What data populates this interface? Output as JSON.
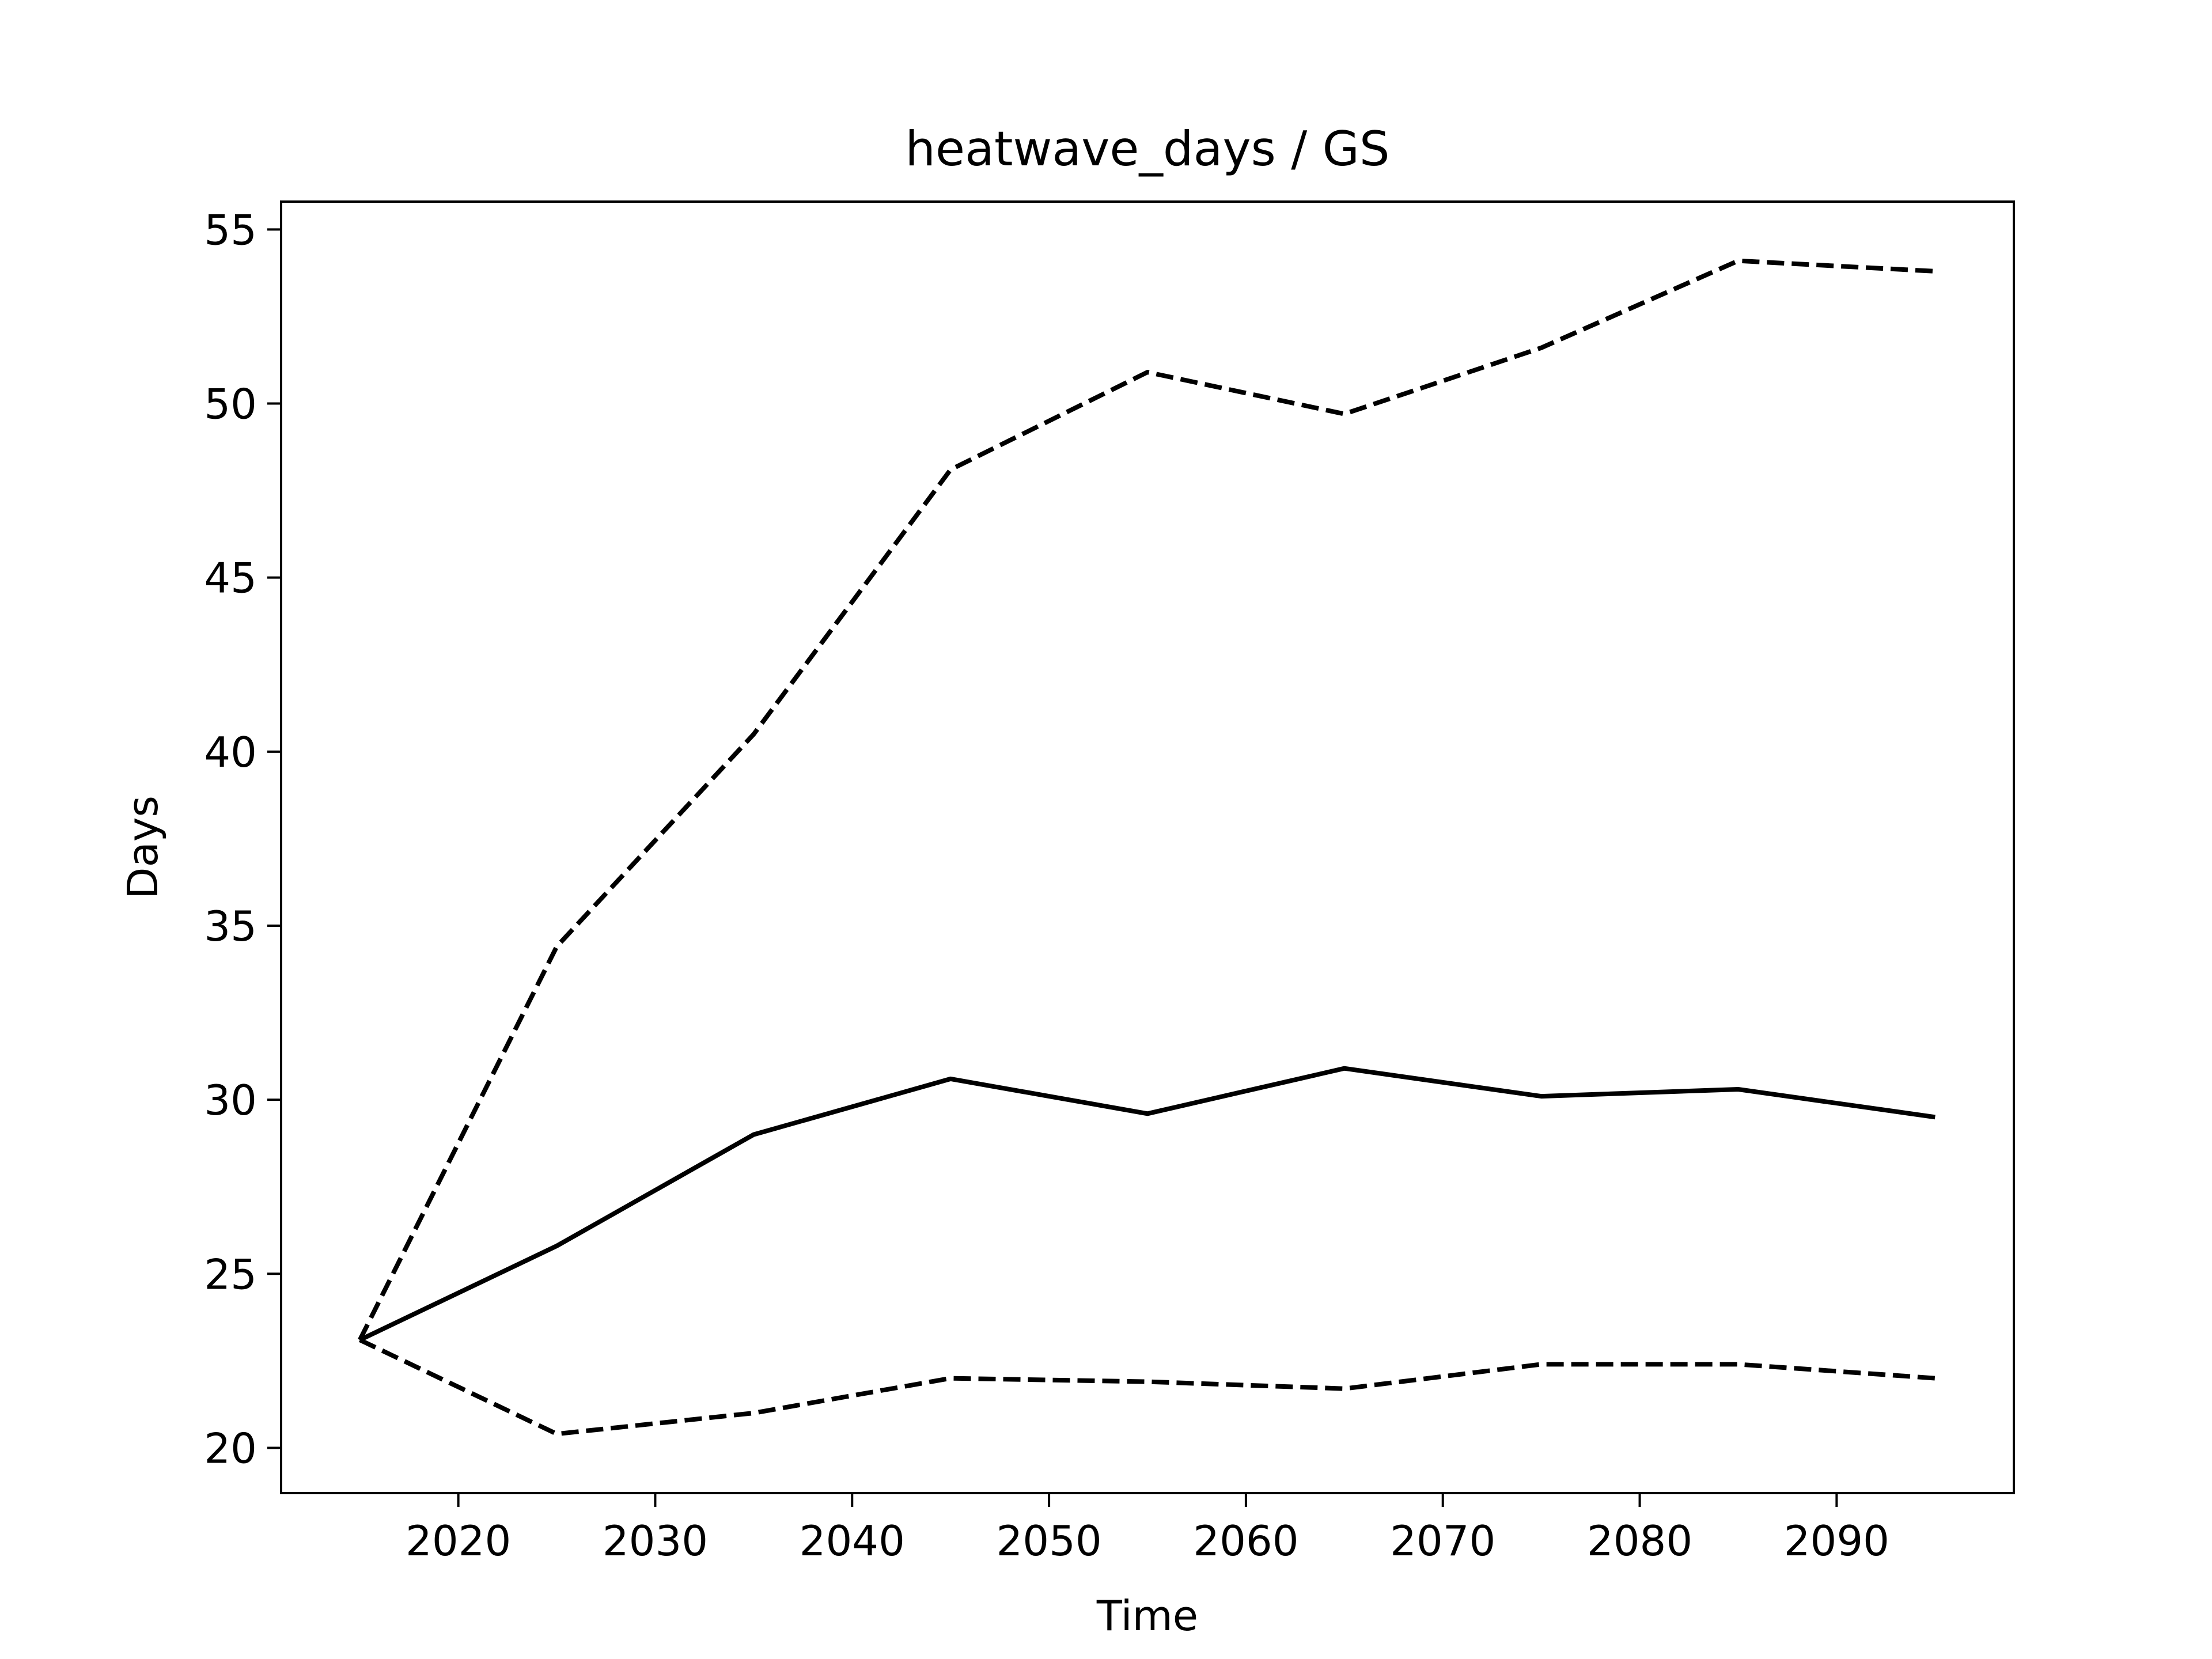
{
  "chart_data": {
    "type": "line",
    "title": "heatwave_days / GS",
    "xlabel": "Time",
    "ylabel": "Days",
    "x": [
      2015,
      2025,
      2035,
      2045,
      2055,
      2065,
      2075,
      2085,
      2095
    ],
    "xlim": [
      2011,
      2099
    ],
    "ylim": [
      18.7,
      55.8
    ],
    "xticks": [
      2020,
      2030,
      2040,
      2050,
      2060,
      2070,
      2080,
      2090
    ],
    "yticks": [
      20,
      25,
      30,
      35,
      40,
      45,
      50,
      55
    ],
    "grid": false,
    "series": [
      {
        "style": "solid",
        "color": "#000000",
        "values": [
          23.1,
          25.8,
          29.0,
          30.6,
          29.6,
          30.9,
          30.1,
          30.3,
          29.5
        ]
      },
      {
        "style": "dashed",
        "color": "#000000",
        "values": [
          23.1,
          34.4,
          40.5,
          48.1,
          50.9,
          49.7,
          51.6,
          54.1,
          53.8
        ]
      },
      {
        "style": "dashed",
        "color": "#000000",
        "values": [
          23.1,
          20.4,
          21.0,
          22.0,
          21.9,
          21.7,
          22.4,
          22.4,
          22.0
        ]
      }
    ]
  }
}
